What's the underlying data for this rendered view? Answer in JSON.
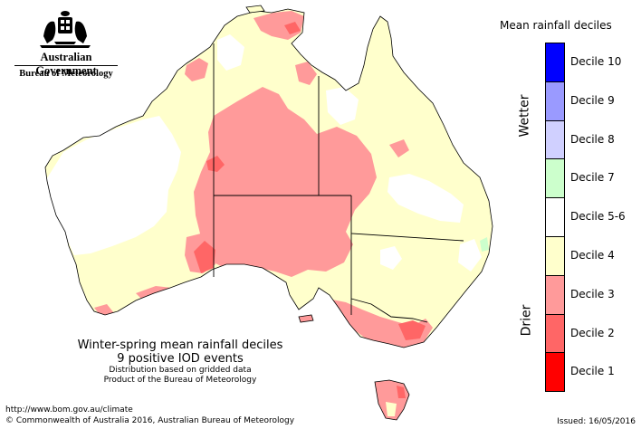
{
  "branding": {
    "line1": "Australian Government",
    "line2": "Bureau of Meteorology"
  },
  "legend": {
    "title": "Mean rainfall deciles",
    "wetter_label": "Wetter",
    "drier_label": "Drier",
    "items": [
      {
        "label": "Decile 10",
        "color": "#0000ff"
      },
      {
        "label": "Decile 9",
        "color": "#9a9aff"
      },
      {
        "label": "Decile 8",
        "color": "#d0d0ff"
      },
      {
        "label": "Decile 7",
        "color": "#ccffcc"
      },
      {
        "label": "Decile 5-6",
        "color": "#ffffff"
      },
      {
        "label": "Decile 4",
        "color": "#ffffcc"
      },
      {
        "label": "Decile 3",
        "color": "#ff9a9a"
      },
      {
        "label": "Decile 2",
        "color": "#ff6666"
      },
      {
        "label": "Decile 1",
        "color": "#ff0000"
      }
    ]
  },
  "caption": {
    "line1": "Winter-spring mean rainfall deciles",
    "line2": "9 positive IOD events",
    "line3": "Distribution based on gridded data",
    "line4": "Product of the Bureau of Meteorology"
  },
  "footer": {
    "url": "http://www.bom.gov.au/climate",
    "copyright": "© Commonwealth of Australia 2016, Australian Bureau of Meteorology",
    "issued": "Issued: 16/05/2016"
  },
  "map_colors": {
    "decile_4": "#ffffcc",
    "decile_3": "#ff9a9a",
    "decile_2": "#ff6666",
    "decile_7": "#ccffcc",
    "decile_5_6": "#ffffff",
    "border": "#000000"
  }
}
